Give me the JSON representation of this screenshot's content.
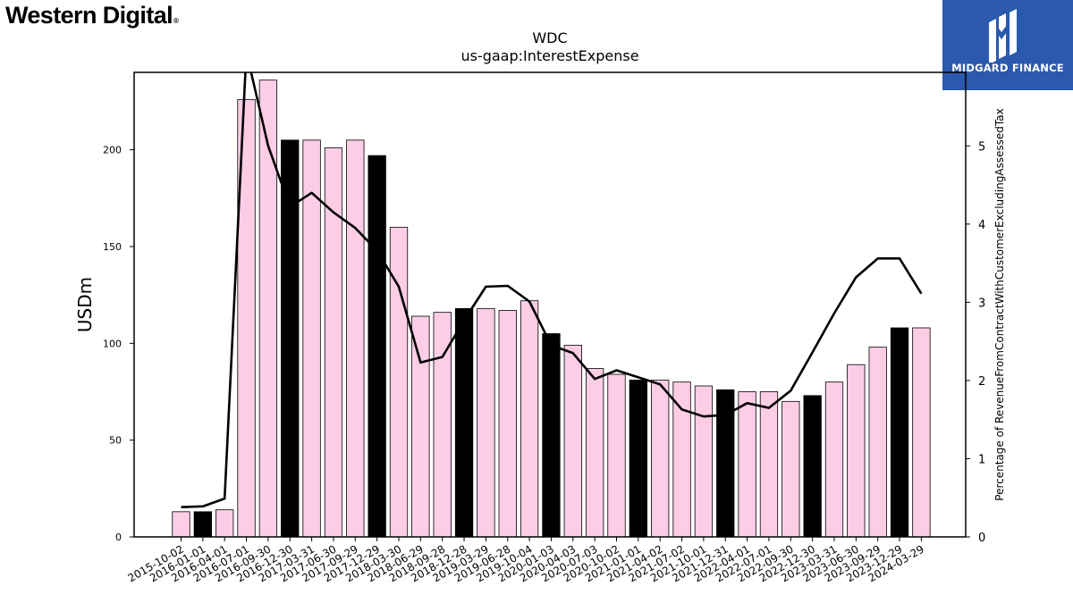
{
  "branding": {
    "company_logo_text": "Western Digital",
    "company_logo_mark": "®",
    "publisher_logo_text": "MIDGARD FINANCE",
    "publisher_logo_icon": "midgard-m-icon"
  },
  "chart_data": {
    "type": "bar",
    "title": "WDC",
    "subtitle": "us-gaap:InterestExpense",
    "ylabel": "USDm",
    "y2label": "Percentage of RevenueFromContractWithCustomerExcludingAssessedTax",
    "ylim": [
      0,
      240
    ],
    "y2lim": [
      0,
      5.94
    ],
    "yticks": [
      0,
      50,
      100,
      150,
      200
    ],
    "y2ticks": [
      0,
      1,
      2,
      3,
      4,
      5
    ],
    "grid": false,
    "legend": "none",
    "colors": {
      "bar": "#fccde5",
      "bar_highlight": "#000000",
      "line": "#000000"
    },
    "categories": [
      "2015-10-02",
      "2016-01-01",
      "2016-04-01",
      "2016-07-01",
      "2016-09-30",
      "2016-12-30",
      "2017-03-31",
      "2017-06-30",
      "2017-09-29",
      "2017-12-29",
      "2018-03-30",
      "2018-06-29",
      "2018-09-28",
      "2018-12-28",
      "2019-03-29",
      "2019-06-28",
      "2019-10-04",
      "2020-01-03",
      "2020-04-03",
      "2020-07-03",
      "2020-10-02",
      "2021-01-01",
      "2021-04-02",
      "2021-07-02",
      "2021-10-01",
      "2021-12-31",
      "2022-04-01",
      "2022-07-01",
      "2022-09-30",
      "2022-12-30",
      "2023-03-31",
      "2023-06-30",
      "2023-09-29",
      "2023-12-29",
      "2024-03-29"
    ],
    "series": [
      {
        "type": "bar",
        "values": [
          13,
          13,
          14,
          226,
          236,
          205,
          205,
          201,
          205,
          197,
          160,
          114,
          116,
          118,
          118,
          117,
          122,
          105,
          99,
          87,
          84,
          81,
          81,
          80,
          78,
          76,
          75,
          75,
          70,
          73,
          80,
          89,
          98,
          108,
          108
        ],
        "highlight": [
          false,
          true,
          false,
          false,
          false,
          true,
          false,
          false,
          false,
          true,
          false,
          false,
          false,
          true,
          false,
          false,
          false,
          true,
          false,
          false,
          false,
          true,
          false,
          false,
          false,
          true,
          false,
          false,
          false,
          true,
          false,
          false,
          false,
          true,
          false
        ]
      },
      {
        "type": "line",
        "axis": "right",
        "values": [
          0.38,
          0.39,
          0.49,
          6.2,
          5.0,
          4.22,
          4.4,
          4.15,
          3.95,
          3.66,
          3.2,
          2.23,
          2.3,
          2.77,
          3.2,
          3.21,
          3.01,
          2.45,
          2.35,
          2.02,
          2.13,
          2.04,
          1.95,
          1.63,
          1.54,
          1.56,
          1.71,
          1.65,
          1.87,
          2.36,
          2.86,
          3.32,
          3.56,
          3.56,
          3.11
        ]
      }
    ]
  }
}
